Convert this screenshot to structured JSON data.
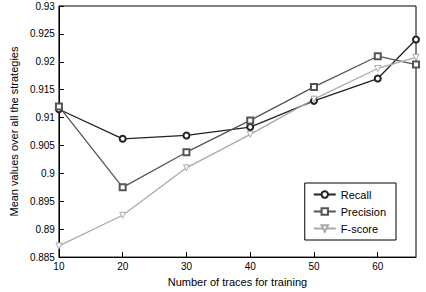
{
  "chart_data": {
    "type": "line",
    "x_label": "Number of traces for training",
    "y_label": "Mean values over all the strategies",
    "x": [
      10,
      20,
      30,
      40,
      50,
      60,
      66
    ],
    "series": [
      {
        "name": "Recall",
        "color": "#222222",
        "marker": "circle",
        "values": [
          0.9115,
          0.9062,
          0.9068,
          0.9083,
          0.913,
          0.917,
          0.924
        ]
      },
      {
        "name": "Precision",
        "color": "#555555",
        "marker": "square",
        "values": [
          0.912,
          0.8975,
          0.9038,
          0.9095,
          0.9155,
          0.921,
          0.9195
        ]
      },
      {
        "name": "F-score",
        "color": "#aaaaaa",
        "marker": "triangle-down",
        "values": [
          0.887,
          0.8925,
          0.901,
          0.907,
          0.9133,
          0.9188,
          0.9208
        ]
      }
    ],
    "xlim": [
      10,
      66
    ],
    "xticks": [
      10,
      20,
      30,
      40,
      50,
      60
    ],
    "ylim": [
      0.885,
      0.93
    ],
    "yticks": [
      0.885,
      0.89,
      0.895,
      0.9,
      0.905,
      0.91,
      0.915,
      0.92,
      0.925,
      0.93
    ],
    "grid": false,
    "legend": "bottom-right"
  }
}
